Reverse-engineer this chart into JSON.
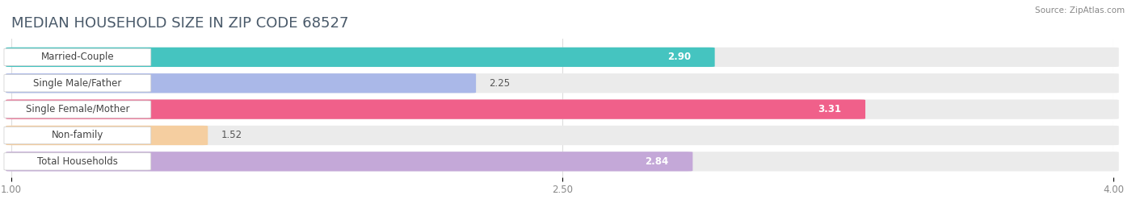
{
  "title": "MEDIAN HOUSEHOLD SIZE IN ZIP CODE 68527",
  "source": "Source: ZipAtlas.com",
  "categories": [
    "Married-Couple",
    "Single Male/Father",
    "Single Female/Mother",
    "Non-family",
    "Total Households"
  ],
  "values": [
    2.9,
    2.25,
    3.31,
    1.52,
    2.84
  ],
  "colors": [
    "#45c4c0",
    "#aab8e8",
    "#f0608a",
    "#f5ceA0",
    "#c4a8d8"
  ],
  "value_in_bar": [
    true,
    false,
    true,
    false,
    true
  ],
  "xlim_min": 1.0,
  "xlim_max": 4.0,
  "x_ticks": [
    1.0,
    2.5,
    4.0
  ],
  "x_tick_labels": [
    "1.00",
    "2.50",
    "4.00"
  ],
  "bar_height": 0.72,
  "background_color": "#ffffff",
  "bar_bg_color": "#ebebeb",
  "title_fontsize": 13,
  "label_fontsize": 8.5,
  "value_fontsize": 8.5
}
